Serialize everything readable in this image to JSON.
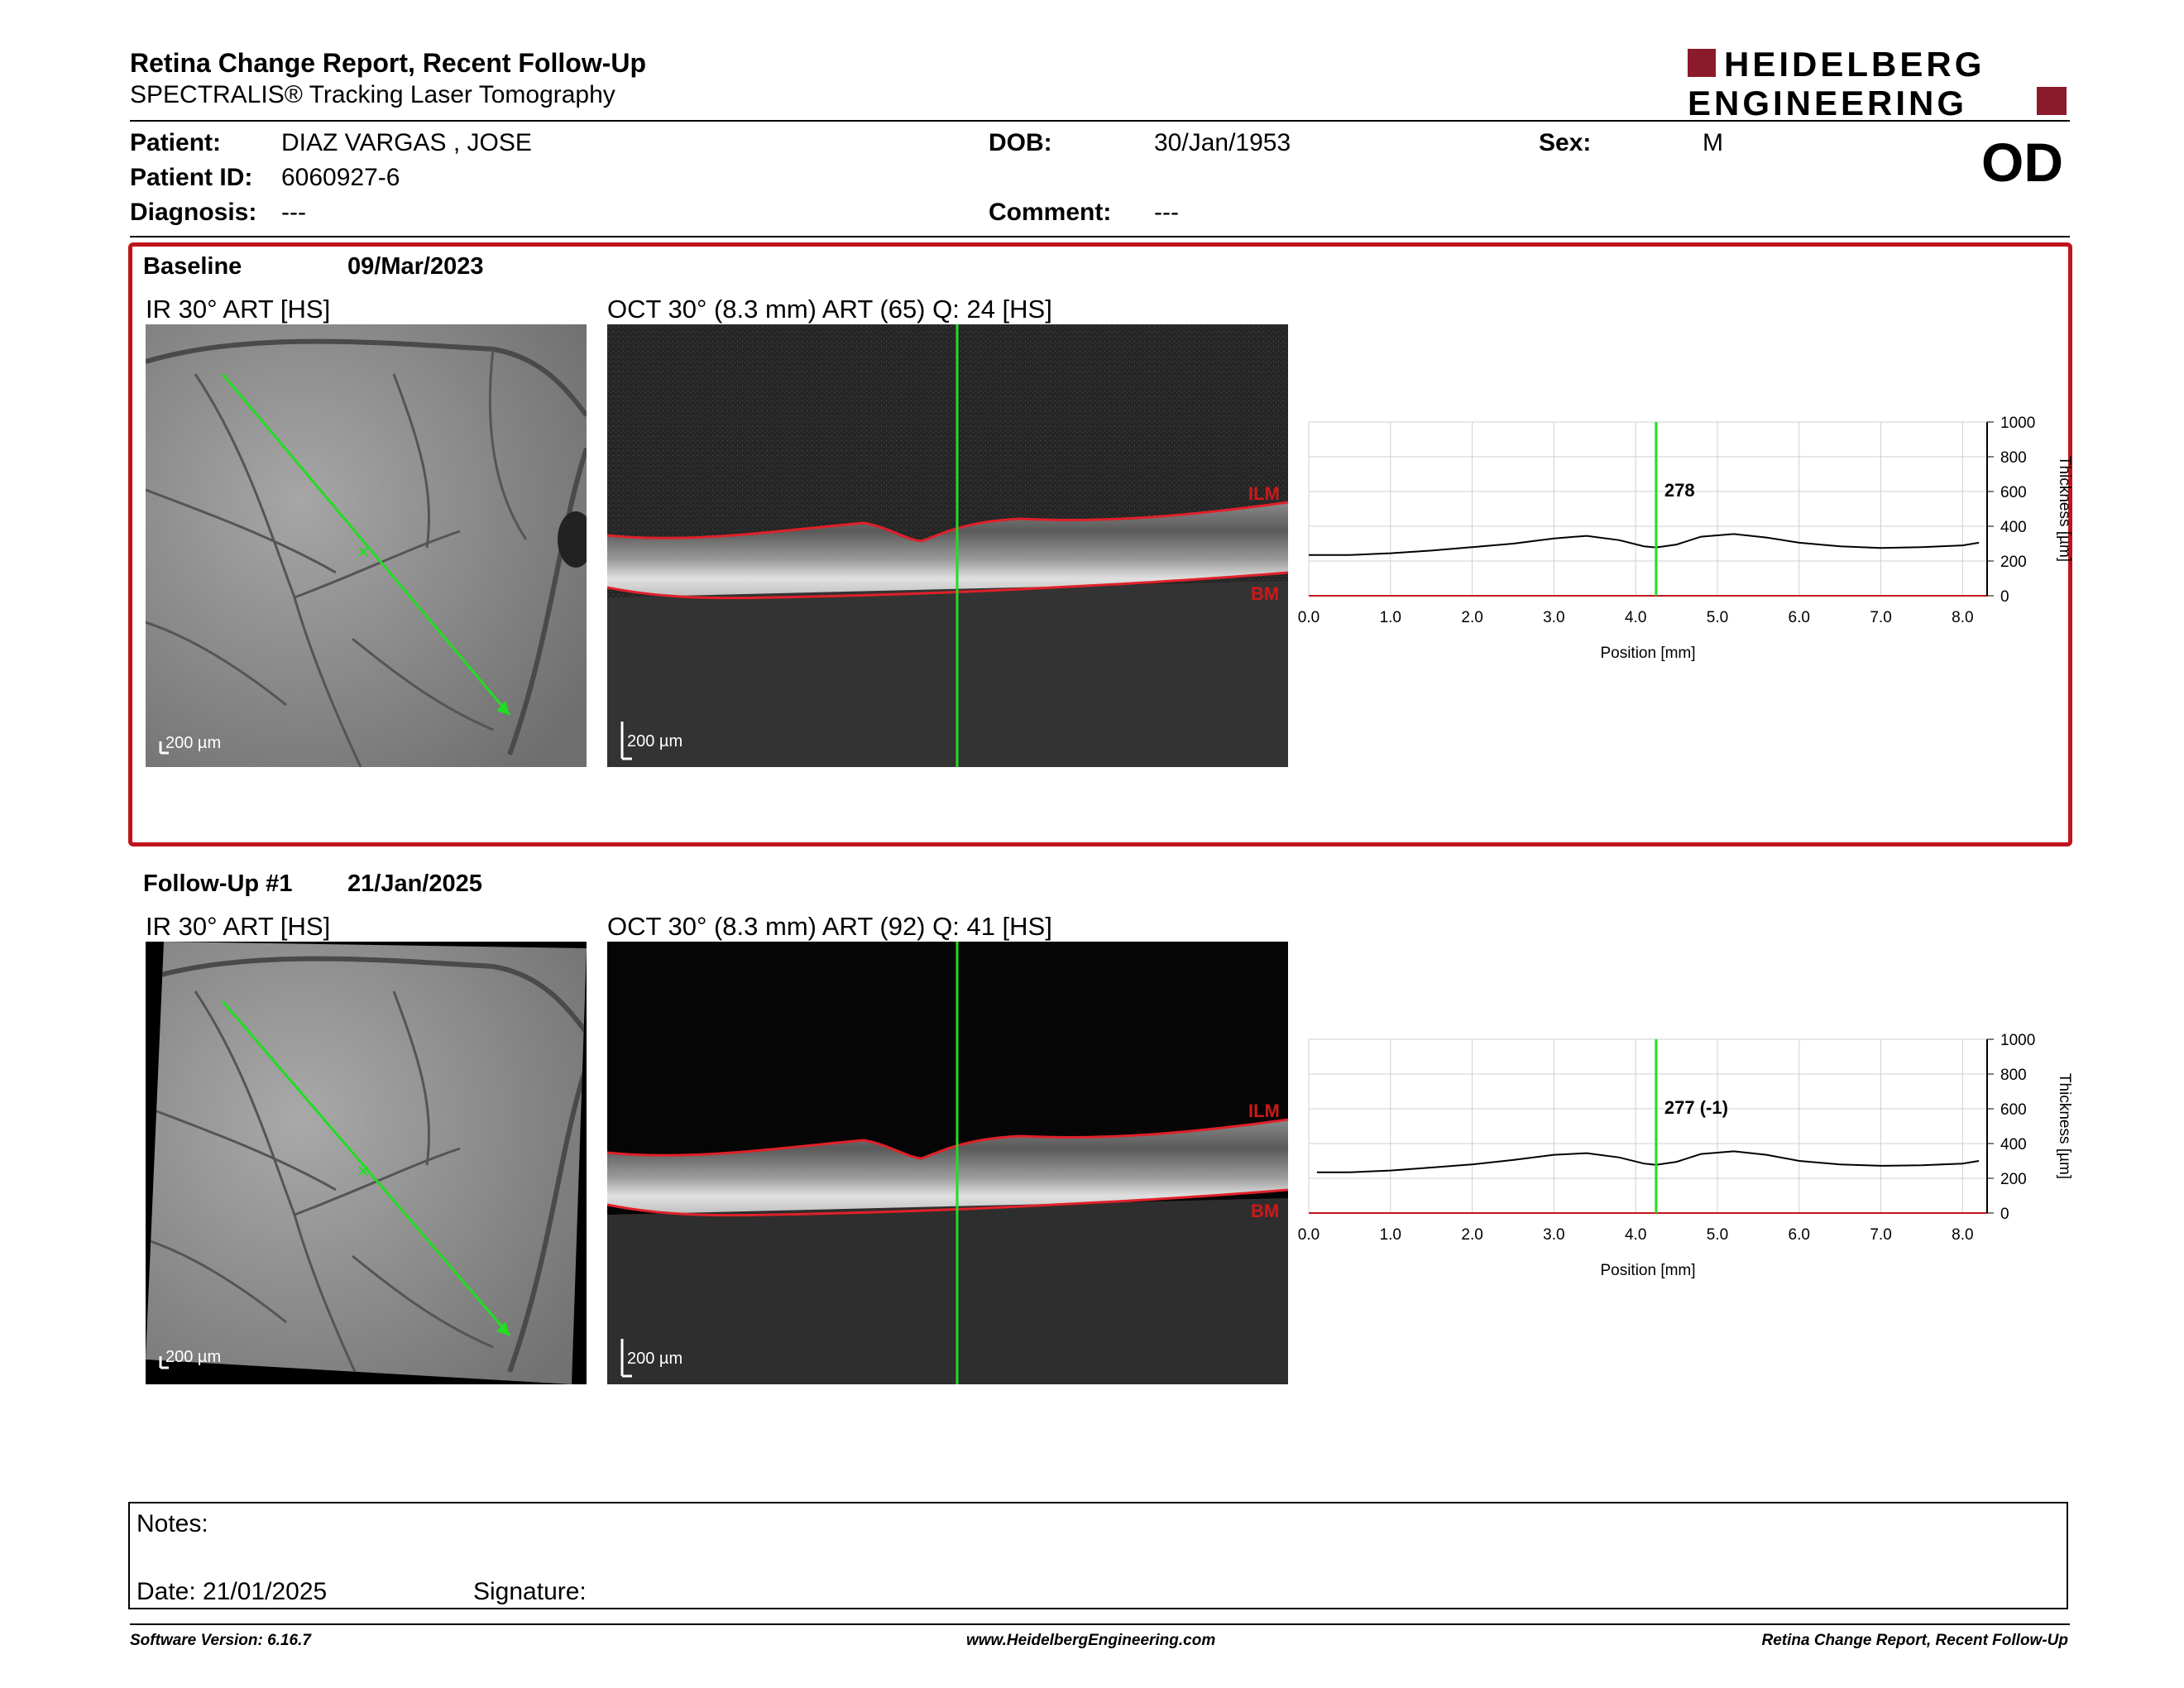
{
  "header": {
    "title": "Retina Change Report, Recent Follow-Up",
    "subtitle": "SPECTRALIS® Tracking Laser Tomography",
    "logo_line1": "HEIDELBERG",
    "logo_line2": "ENGINEERING",
    "brand_color": "#8b1a2b"
  },
  "patient": {
    "patient_label": "Patient:",
    "patient_name": "DIAZ VARGAS , JOSE",
    "id_label": "Patient ID:",
    "id_value": "6060927-6",
    "diagnosis_label": "Diagnosis:",
    "diagnosis_value": "---",
    "dob_label": "DOB:",
    "dob_value": "30/Jan/1953",
    "comment_label": "Comment:",
    "comment_value": "---",
    "sex_label": "Sex:",
    "sex_value": "M",
    "eye": "OD"
  },
  "baseline": {
    "label": "Baseline",
    "date": "09/Mar/2023",
    "ir_label": "IR 30° ART [HS]",
    "oct_label": "OCT 30° (8.3 mm) ART (65) Q: 24 [HS]",
    "scale_ir": "200 µm",
    "scale_oct": "200 µm",
    "ilm": "ILM",
    "bm": "BM",
    "highlight_color": "#c0141c"
  },
  "followup": {
    "label": "Follow-Up #1",
    "date": "21/Jan/2025",
    "ir_label": "IR 30° ART [HS]",
    "oct_label": "OCT 30° (8.3 mm) ART (92) Q: 41 [HS]",
    "scale_ir": "200 µm",
    "scale_oct": "200 µm",
    "ilm": "ILM",
    "bm": "BM"
  },
  "chart_data": [
    {
      "type": "line",
      "xlabel": "Position [mm]",
      "ylabel": "Thickness [µm]",
      "xlim": [
        0,
        8.3
      ],
      "ylim": [
        0,
        1000
      ],
      "x_ticks": [
        "0.0",
        "1.0",
        "2.0",
        "3.0",
        "4.0",
        "5.0",
        "6.0",
        "7.0",
        "8.0"
      ],
      "y_ticks": [
        "0",
        "200",
        "400",
        "600",
        "800",
        "1000"
      ],
      "grid": true,
      "cursor_x": 4.25,
      "cursor_label": "278",
      "x": [
        0.0,
        0.5,
        1.0,
        1.5,
        2.0,
        2.5,
        3.0,
        3.4,
        3.8,
        4.1,
        4.25,
        4.5,
        4.8,
        5.2,
        5.6,
        6.0,
        6.5,
        7.0,
        7.5,
        8.0,
        8.2
      ],
      "values": [
        235,
        235,
        245,
        260,
        280,
        300,
        330,
        345,
        320,
        285,
        278,
        295,
        340,
        355,
        335,
        305,
        285,
        275,
        280,
        290,
        305
      ]
    },
    {
      "type": "line",
      "xlabel": "Position [mm]",
      "ylabel": "Thickness [µm]",
      "xlim": [
        0,
        8.3
      ],
      "ylim": [
        0,
        1000
      ],
      "x_ticks": [
        "0.0",
        "1.0",
        "2.0",
        "3.0",
        "4.0",
        "5.0",
        "6.0",
        "7.0",
        "8.0"
      ],
      "y_ticks": [
        "0",
        "200",
        "400",
        "600",
        "800",
        "1000"
      ],
      "grid": true,
      "cursor_x": 4.25,
      "cursor_label": "277 (-1)",
      "x": [
        0.1,
        0.5,
        1.0,
        1.5,
        2.0,
        2.5,
        3.0,
        3.4,
        3.8,
        4.1,
        4.25,
        4.5,
        4.8,
        5.2,
        5.6,
        6.0,
        6.5,
        7.0,
        7.5,
        8.0,
        8.2
      ],
      "values": [
        235,
        235,
        245,
        262,
        280,
        305,
        335,
        345,
        320,
        285,
        277,
        295,
        340,
        355,
        335,
        300,
        280,
        272,
        275,
        285,
        300
      ]
    }
  ],
  "notes": {
    "notes_label": "Notes:",
    "date_label": "Date: 21/01/2025",
    "signature_label": "Signature:"
  },
  "footer": {
    "version": "Software Version: 6.16.7",
    "website": "www.HeidelbergEngineering.com",
    "report_name": "Retina Change Report, Recent Follow-Up"
  }
}
